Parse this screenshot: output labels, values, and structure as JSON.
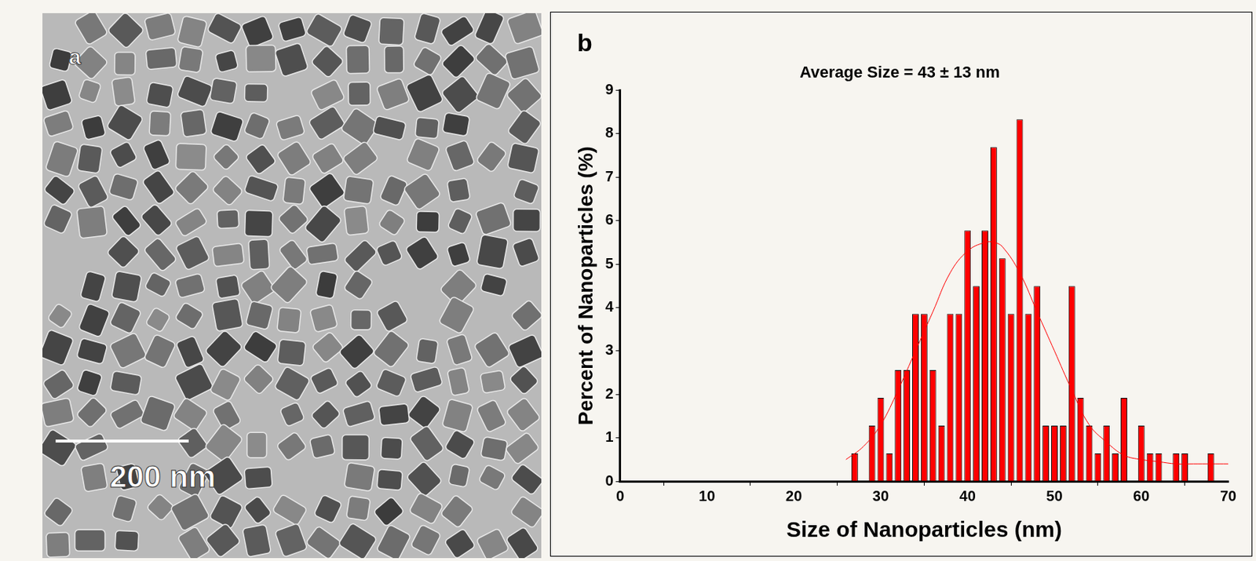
{
  "image_panel": {
    "panel_label": "a",
    "scale_bar": "200 nm"
  },
  "chart_data": {
    "type": "bar",
    "panel_label": "b",
    "title": "Average Size = 43 ± 13 nm",
    "x_label": "Size of Nanoparticles (nm)",
    "y_label": "Percent of Nanoparticles (%)",
    "bins": [
      26.5,
      27.5,
      28.5,
      29.5,
      30.5,
      31.5,
      32.5,
      33.5,
      34.5,
      35.5,
      36.5,
      37.5,
      38.5,
      39.5,
      40.5,
      41.5,
      42.5,
      43.5,
      44.5,
      45.5,
      46.5,
      47.5,
      48.5,
      49.5,
      50.5,
      51.5,
      52.5,
      53.5,
      54.5,
      55.5,
      56.5,
      57.5,
      58.5,
      59.5,
      60.5,
      61.5,
      62.5,
      63.5,
      64.5,
      65.5,
      66.5,
      67.5,
      68.5
    ],
    "values": [
      0.64,
      0,
      1.28,
      1.92,
      0.64,
      2.56,
      2.56,
      3.85,
      3.85,
      2.56,
      1.28,
      3.85,
      3.85,
      5.77,
      4.49,
      5.77,
      7.69,
      5.13,
      3.85,
      8.33,
      3.85,
      4.49,
      1.28,
      1.28,
      1.28,
      4.49,
      1.92,
      1.28,
      0.64,
      1.28,
      0.64,
      1.92,
      0,
      1.28,
      0.64,
      0.64,
      0,
      0.64,
      0.64,
      0,
      0,
      0.64
    ],
    "color": "#ff0000",
    "fit": {
      "type": "line",
      "color": "#ff0000",
      "x": [
        26,
        28,
        30,
        32,
        34,
        36,
        38,
        40,
        42,
        43,
        44,
        46,
        48,
        50,
        52,
        54,
        56,
        58,
        60,
        62,
        64,
        66,
        68,
        70
      ],
      "values": [
        0.5,
        0.8,
        1.3,
        2.1,
        3.0,
        3.9,
        4.8,
        5.3,
        5.5,
        5.5,
        5.4,
        4.8,
        3.9,
        3.0,
        2.1,
        1.3,
        0.9,
        0.6,
        0.5,
        0.45,
        0.4,
        0.4,
        0.4,
        0.4
      ]
    },
    "xlim": [
      0,
      70
    ],
    "xticks": [
      0,
      10,
      20,
      30,
      40,
      50,
      60,
      70
    ],
    "ylim": [
      0,
      9
    ],
    "yticks": [
      0,
      1,
      2,
      3,
      4,
      5,
      6,
      7,
      8,
      9
    ],
    "grid": false,
    "legend": "none"
  }
}
